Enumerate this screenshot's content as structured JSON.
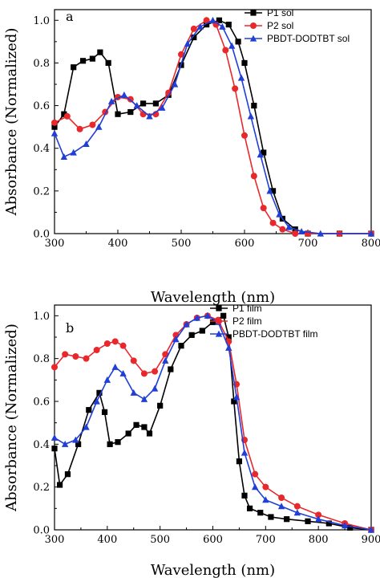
{
  "chart_data": [
    {
      "type": "line",
      "panel_label": "a",
      "xlabel": "Wavelength (nm)",
      "ylabel": "Absorbance (Normalized)",
      "xlim": [
        300,
        800
      ],
      "ylim": [
        0,
        1.05
      ],
      "xticks": [
        "300",
        "400",
        "500",
        "600",
        "700",
        "800"
      ],
      "yticks": [
        "0.0",
        "0.2",
        "0.4",
        "0.6",
        "0.8",
        "1.0"
      ],
      "legend_position": "top-right",
      "series": [
        {
          "name": "P1 sol",
          "color": "#000000",
          "marker": "square",
          "x": [
            300,
            315,
            330,
            345,
            360,
            372,
            385,
            400,
            420,
            440,
            460,
            480,
            500,
            520,
            540,
            560,
            575,
            590,
            600,
            615,
            630,
            645,
            660,
            680,
            700,
            750,
            800
          ],
          "y": [
            0.5,
            0.56,
            0.78,
            0.81,
            0.82,
            0.85,
            0.8,
            0.56,
            0.57,
            0.61,
            0.61,
            0.65,
            0.79,
            0.92,
            0.98,
            1.0,
            0.98,
            0.9,
            0.8,
            0.6,
            0.38,
            0.2,
            0.07,
            0.02,
            0.0,
            0.0,
            0.0
          ]
        },
        {
          "name": "P2 sol",
          "color": "#e8282b",
          "marker": "circle",
          "x": [
            300,
            320,
            340,
            360,
            380,
            400,
            420,
            440,
            460,
            480,
            500,
            520,
            540,
            555,
            570,
            585,
            600,
            615,
            630,
            645,
            660,
            680,
            700,
            750,
            800
          ],
          "y": [
            0.52,
            0.55,
            0.49,
            0.51,
            0.57,
            0.64,
            0.63,
            0.56,
            0.56,
            0.66,
            0.84,
            0.96,
            1.0,
            0.98,
            0.86,
            0.68,
            0.46,
            0.27,
            0.12,
            0.05,
            0.02,
            0.0,
            0.0,
            0.0,
            0.0
          ]
        },
        {
          "name": "PBDT-DODTBT sol",
          "color": "#1f3fd6",
          "marker": "triangle",
          "x": [
            300,
            315,
            330,
            350,
            370,
            390,
            410,
            430,
            450,
            470,
            490,
            510,
            530,
            550,
            565,
            580,
            595,
            610,
            625,
            640,
            655,
            670,
            690,
            720,
            800
          ],
          "y": [
            0.47,
            0.36,
            0.38,
            0.42,
            0.5,
            0.62,
            0.65,
            0.6,
            0.55,
            0.59,
            0.7,
            0.89,
            0.97,
            1.0,
            0.97,
            0.88,
            0.73,
            0.55,
            0.37,
            0.2,
            0.09,
            0.03,
            0.01,
            0.0,
            0.0
          ]
        }
      ]
    },
    {
      "type": "line",
      "panel_label": "b",
      "xlabel": "Wavelength (nm)",
      "ylabel": "Absorbance (Normalized)",
      "xlim": [
        300,
        900
      ],
      "ylim": [
        0,
        1.05
      ],
      "xticks": [
        "300",
        "400",
        "500",
        "600",
        "700",
        "800",
        "900"
      ],
      "yticks": [
        "0.0",
        "0.2",
        "0.4",
        "0.6",
        "0.8",
        "1.0"
      ],
      "legend_position": "top-right",
      "series": [
        {
          "name": "P1 film",
          "color": "#000000",
          "marker": "square",
          "x": [
            300,
            310,
            325,
            345,
            365,
            385,
            395,
            405,
            420,
            440,
            455,
            470,
            480,
            500,
            520,
            540,
            560,
            580,
            600,
            620,
            630,
            640,
            650,
            660,
            670,
            690,
            710,
            740,
            780,
            820,
            860,
            900
          ],
          "y": [
            0.38,
            0.21,
            0.26,
            0.4,
            0.56,
            0.64,
            0.55,
            0.4,
            0.41,
            0.45,
            0.49,
            0.48,
            0.45,
            0.58,
            0.75,
            0.86,
            0.91,
            0.93,
            0.97,
            1.0,
            0.9,
            0.6,
            0.32,
            0.16,
            0.1,
            0.08,
            0.06,
            0.05,
            0.04,
            0.03,
            0.01,
            0.0
          ]
        },
        {
          "name": "P2 film",
          "color": "#e8282b",
          "marker": "circle",
          "x": [
            300,
            320,
            340,
            360,
            380,
            400,
            415,
            430,
            450,
            470,
            490,
            510,
            530,
            550,
            570,
            590,
            610,
            630,
            645,
            660,
            680,
            700,
            730,
            760,
            800,
            850,
            900
          ],
          "y": [
            0.76,
            0.82,
            0.81,
            0.8,
            0.84,
            0.87,
            0.88,
            0.86,
            0.79,
            0.73,
            0.74,
            0.82,
            0.91,
            0.96,
            0.99,
            1.0,
            0.98,
            0.88,
            0.68,
            0.42,
            0.26,
            0.2,
            0.15,
            0.11,
            0.07,
            0.03,
            0.0
          ]
        },
        {
          "name": "PBDT-DODTBT film",
          "color": "#1f3fd6",
          "marker": "triangle",
          "x": [
            300,
            320,
            340,
            360,
            380,
            400,
            415,
            430,
            450,
            470,
            490,
            510,
            530,
            550,
            570,
            590,
            610,
            630,
            645,
            660,
            680,
            700,
            730,
            760,
            800,
            850,
            900
          ],
          "y": [
            0.43,
            0.4,
            0.42,
            0.48,
            0.6,
            0.7,
            0.76,
            0.73,
            0.64,
            0.61,
            0.66,
            0.79,
            0.89,
            0.96,
            0.99,
            1.0,
            0.97,
            0.85,
            0.62,
            0.36,
            0.2,
            0.14,
            0.11,
            0.08,
            0.05,
            0.02,
            0.0
          ]
        }
      ]
    }
  ]
}
